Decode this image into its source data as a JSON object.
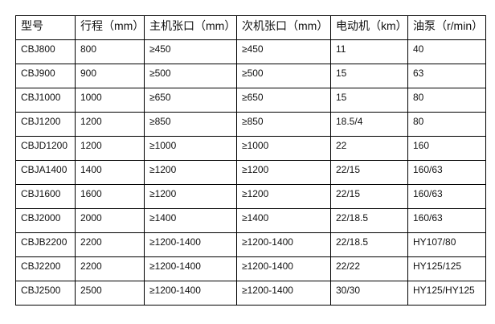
{
  "table": {
    "headers": [
      "型号",
      "行程（mm）",
      "主机张口（mm）",
      "次机张口（mm）",
      "电动机（km）",
      "油泵（r/min）"
    ],
    "rows": [
      [
        "CBJ800",
        "800",
        "≥450",
        "≥450",
        "11",
        "40"
      ],
      [
        "CBJ900",
        "900",
        "≥500",
        "≥500",
        "15",
        "63"
      ],
      [
        "CBJ1000",
        "1000",
        "≥650",
        "≥650",
        "15",
        "80"
      ],
      [
        "CBJ1200",
        "1200",
        "≥850",
        "≥850",
        "18.5/4",
        "80"
      ],
      [
        "CBJD1200",
        "1200",
        "≥1000",
        "≥1000",
        "22",
        "160"
      ],
      [
        "CBJA1400",
        "1400",
        "≥1200",
        "≥1200",
        "22/15",
        "160/63"
      ],
      [
        "CBJ1600",
        "1600",
        "≥1200",
        "≥1200",
        "22/15",
        "160/63"
      ],
      [
        "CBJ2000",
        "2000",
        "≥1400",
        "≥1400",
        "22/18.5",
        "160/63"
      ],
      [
        "CBJB2200",
        "2200",
        "≥1200-1400",
        "≥1200-1400",
        "22/18.5",
        "HY107/80"
      ],
      [
        "CBJ2200",
        "2200",
        "≥1200-1400",
        "≥1200-1400",
        "22/22",
        "HY125/125"
      ],
      [
        "CBJ2500",
        "2500",
        "≥1200-1400",
        "≥1200-1400",
        "30/30",
        "HY125/HY125"
      ]
    ]
  }
}
